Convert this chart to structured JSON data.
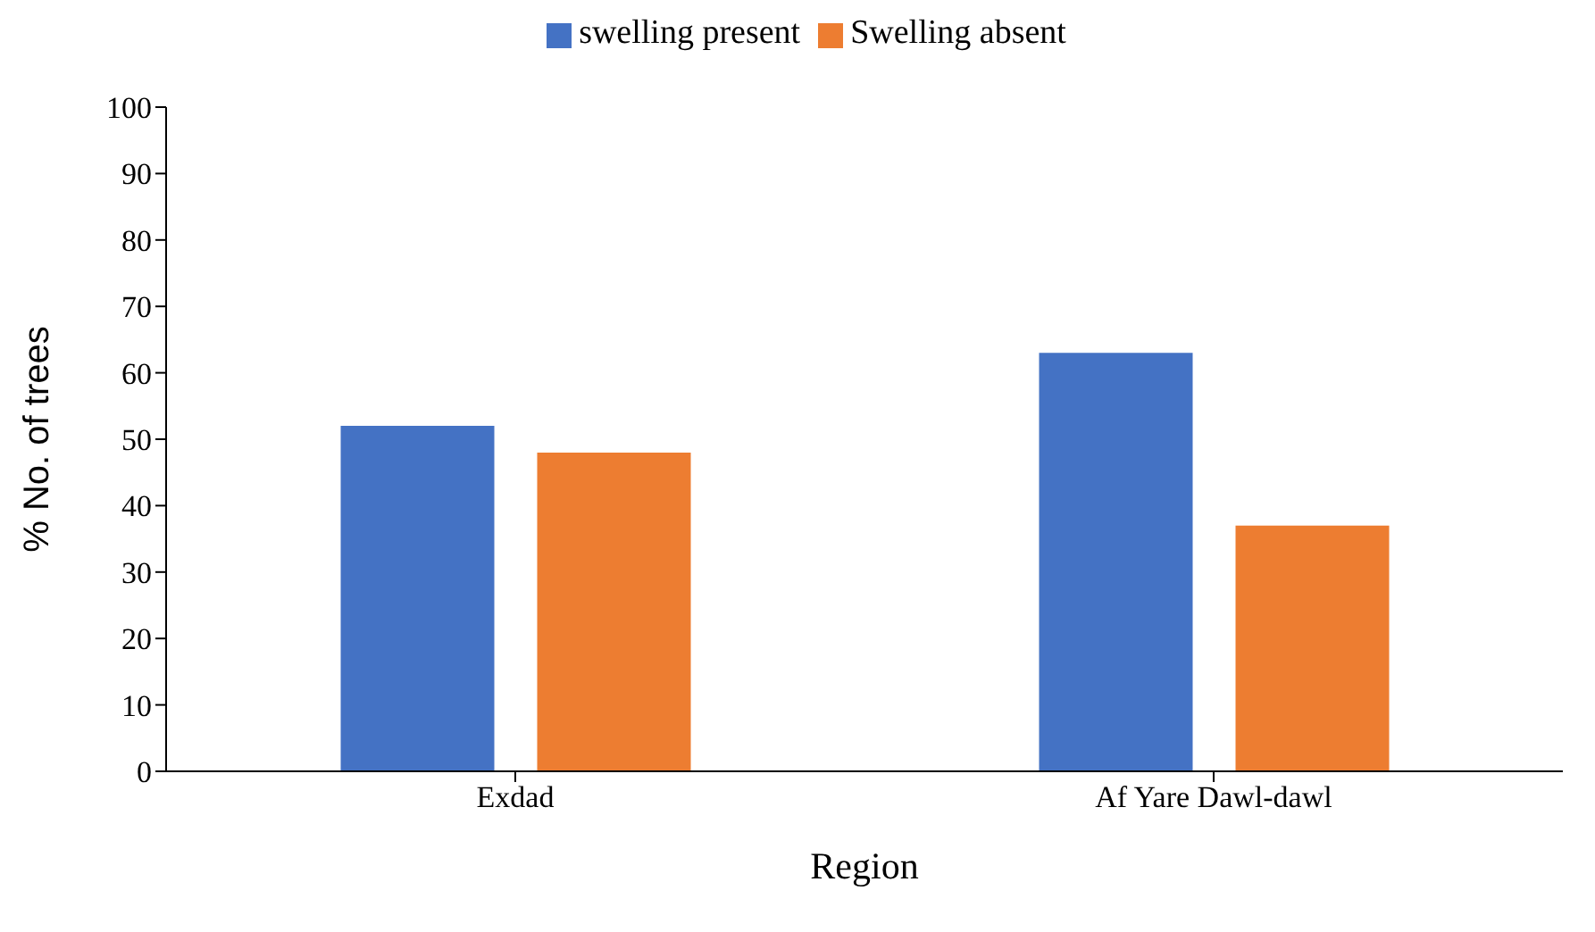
{
  "chart_data": {
    "type": "bar",
    "categories": [
      "Exdad",
      "Af Yare Dawl-dawl"
    ],
    "series": [
      {
        "name": "swelling present",
        "color": "#4472c4",
        "values": [
          52,
          63
        ]
      },
      {
        "name": "Swelling absent",
        "color": "#ed7d31",
        "values": [
          48,
          37
        ]
      }
    ],
    "xlabel": "Region",
    "ylabel": "% No. of trees",
    "ylim": [
      0,
      100
    ],
    "yticks": [
      0,
      10,
      20,
      30,
      40,
      50,
      60,
      70,
      80,
      90,
      100
    ],
    "grid": false,
    "legend": "top"
  }
}
